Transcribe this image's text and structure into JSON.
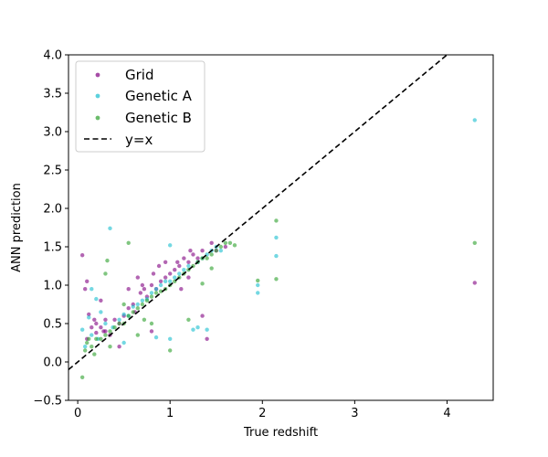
{
  "chart_data": {
    "type": "scatter",
    "xlabel": "True redshift",
    "ylabel": "ANN prediction",
    "xlim": [
      -0.1,
      4.5
    ],
    "ylim": [
      -0.5,
      4.0
    ],
    "xticks": [
      "0",
      "1",
      "2",
      "3",
      "4"
    ],
    "yticks": [
      "−0.5",
      "0.0",
      "0.5",
      "1.0",
      "1.5",
      "2.0",
      "2.5",
      "3.0",
      "3.5",
      "4.0"
    ],
    "grid": false,
    "legend_position": "top-left",
    "series": [
      {
        "name": "Grid",
        "color": "#800080",
        "points": [
          [
            0.05,
            1.39
          ],
          [
            0.08,
            0.95
          ],
          [
            0.1,
            1.05
          ],
          [
            0.12,
            0.62
          ],
          [
            0.1,
            0.3
          ],
          [
            0.15,
            0.45
          ],
          [
            0.2,
            0.5
          ],
          [
            0.25,
            0.45
          ],
          [
            0.3,
            0.55
          ],
          [
            0.3,
            0.4
          ],
          [
            0.35,
            0.35
          ],
          [
            0.4,
            0.55
          ],
          [
            0.45,
            0.5
          ],
          [
            0.5,
            0.6
          ],
          [
            0.55,
            0.7
          ],
          [
            0.6,
            0.75
          ],
          [
            0.62,
            0.65
          ],
          [
            0.68,
            0.9
          ],
          [
            0.72,
            0.95
          ],
          [
            0.75,
            0.85
          ],
          [
            0.8,
            1.0
          ],
          [
            0.82,
            1.15
          ],
          [
            0.85,
            0.95
          ],
          [
            0.9,
            1.05
          ],
          [
            0.95,
            1.1
          ],
          [
            1.0,
            1.15
          ],
          [
            1.05,
            1.2
          ],
          [
            1.08,
            1.3
          ],
          [
            1.1,
            1.25
          ],
          [
            1.15,
            1.35
          ],
          [
            1.2,
            1.3
          ],
          [
            1.22,
            1.45
          ],
          [
            1.25,
            1.4
          ],
          [
            1.3,
            1.35
          ],
          [
            1.35,
            1.45
          ],
          [
            0.95,
            1.3
          ],
          [
            0.88,
            1.25
          ],
          [
            0.7,
            1.0
          ],
          [
            0.65,
            1.1
          ],
          [
            1.12,
            0.95
          ],
          [
            1.2,
            1.1
          ],
          [
            0.55,
            0.95
          ],
          [
            0.45,
            0.2
          ],
          [
            0.18,
            0.55
          ],
          [
            0.25,
            0.8
          ],
          [
            1.4,
            0.3
          ],
          [
            1.35,
            0.6
          ],
          [
            0.8,
            0.4
          ],
          [
            1.5,
            1.45
          ],
          [
            1.45,
            1.55
          ],
          [
            1.6,
            1.5
          ],
          [
            0.28,
            0.4
          ],
          [
            0.2,
            0.38
          ],
          [
            4.3,
            1.03
          ]
        ]
      },
      {
        "name": "Genetic A",
        "color": "#17becf",
        "points": [
          [
            0.05,
            0.42
          ],
          [
            0.08,
            0.2
          ],
          [
            0.12,
            0.58
          ],
          [
            0.15,
            0.35
          ],
          [
            0.15,
            0.95
          ],
          [
            0.22,
            0.3
          ],
          [
            0.25,
            0.65
          ],
          [
            0.35,
            1.74
          ],
          [
            0.3,
            0.5
          ],
          [
            0.38,
            0.45
          ],
          [
            0.45,
            0.55
          ],
          [
            0.5,
            0.62
          ],
          [
            0.55,
            0.6
          ],
          [
            0.6,
            0.72
          ],
          [
            0.65,
            0.75
          ],
          [
            0.7,
            0.8
          ],
          [
            0.75,
            0.82
          ],
          [
            0.8,
            0.9
          ],
          [
            0.85,
            0.95
          ],
          [
            0.9,
            1.0
          ],
          [
            0.95,
            1.05
          ],
          [
            1.0,
            1.05
          ],
          [
            1.05,
            1.1
          ],
          [
            1.1,
            1.15
          ],
          [
            1.15,
            1.2
          ],
          [
            1.2,
            1.25
          ],
          [
            1.3,
            1.3
          ],
          [
            1.35,
            1.35
          ],
          [
            1.4,
            1.4
          ],
          [
            1.45,
            1.45
          ],
          [
            1.5,
            1.5
          ],
          [
            1.55,
            1.45
          ],
          [
            1.0,
            1.52
          ],
          [
            1.0,
            0.3
          ],
          [
            1.3,
            0.45
          ],
          [
            0.85,
            0.32
          ],
          [
            1.95,
            1.0
          ],
          [
            1.95,
            0.9
          ],
          [
            2.15,
            1.62
          ],
          [
            2.15,
            1.38
          ],
          [
            1.25,
            0.42
          ],
          [
            1.4,
            0.42
          ],
          [
            0.5,
            0.25
          ],
          [
            0.2,
            0.82
          ],
          [
            4.3,
            3.15
          ]
        ]
      },
      {
        "name": "Genetic B",
        "color": "#2ca02c",
        "points": [
          [
            0.05,
            -0.2
          ],
          [
            0.08,
            0.15
          ],
          [
            0.1,
            0.25
          ],
          [
            0.15,
            0.2
          ],
          [
            0.2,
            0.3
          ],
          [
            0.25,
            0.3
          ],
          [
            0.3,
            0.35
          ],
          [
            0.35,
            0.4
          ],
          [
            0.4,
            0.45
          ],
          [
            0.45,
            0.5
          ],
          [
            0.5,
            0.5
          ],
          [
            0.55,
            0.6
          ],
          [
            0.6,
            0.65
          ],
          [
            0.65,
            0.7
          ],
          [
            0.7,
            0.75
          ],
          [
            0.75,
            0.8
          ],
          [
            0.8,
            0.85
          ],
          [
            0.85,
            0.9
          ],
          [
            0.9,
            0.92
          ],
          [
            0.95,
            0.95
          ],
          [
            1.0,
            1.0
          ],
          [
            1.05,
            1.05
          ],
          [
            1.1,
            1.1
          ],
          [
            1.15,
            1.15
          ],
          [
            1.2,
            1.2
          ],
          [
            1.25,
            1.25
          ],
          [
            1.3,
            1.3
          ],
          [
            1.35,
            1.35
          ],
          [
            1.4,
            1.35
          ],
          [
            1.45,
            1.4
          ],
          [
            1.5,
            1.45
          ],
          [
            1.55,
            1.5
          ],
          [
            1.6,
            1.55
          ],
          [
            1.65,
            1.55
          ],
          [
            1.7,
            1.52
          ],
          [
            0.32,
            1.32
          ],
          [
            0.3,
            1.15
          ],
          [
            0.5,
            0.75
          ],
          [
            0.35,
            0.2
          ],
          [
            0.55,
            1.55
          ],
          [
            1.0,
            0.15
          ],
          [
            0.65,
            0.35
          ],
          [
            0.72,
            0.55
          ],
          [
            0.8,
            0.5
          ],
          [
            1.2,
            0.55
          ],
          [
            1.35,
            1.02
          ],
          [
            1.95,
            1.06
          ],
          [
            2.15,
            1.84
          ],
          [
            2.15,
            1.08
          ],
          [
            1.45,
            1.22
          ],
          [
            0.12,
            0.3
          ],
          [
            0.18,
            0.1
          ],
          [
            4.3,
            1.55
          ]
        ]
      }
    ],
    "reference_line": {
      "name": "y=x",
      "color": "#000000",
      "style": "dashed",
      "slope": 1,
      "intercept": 0
    }
  }
}
